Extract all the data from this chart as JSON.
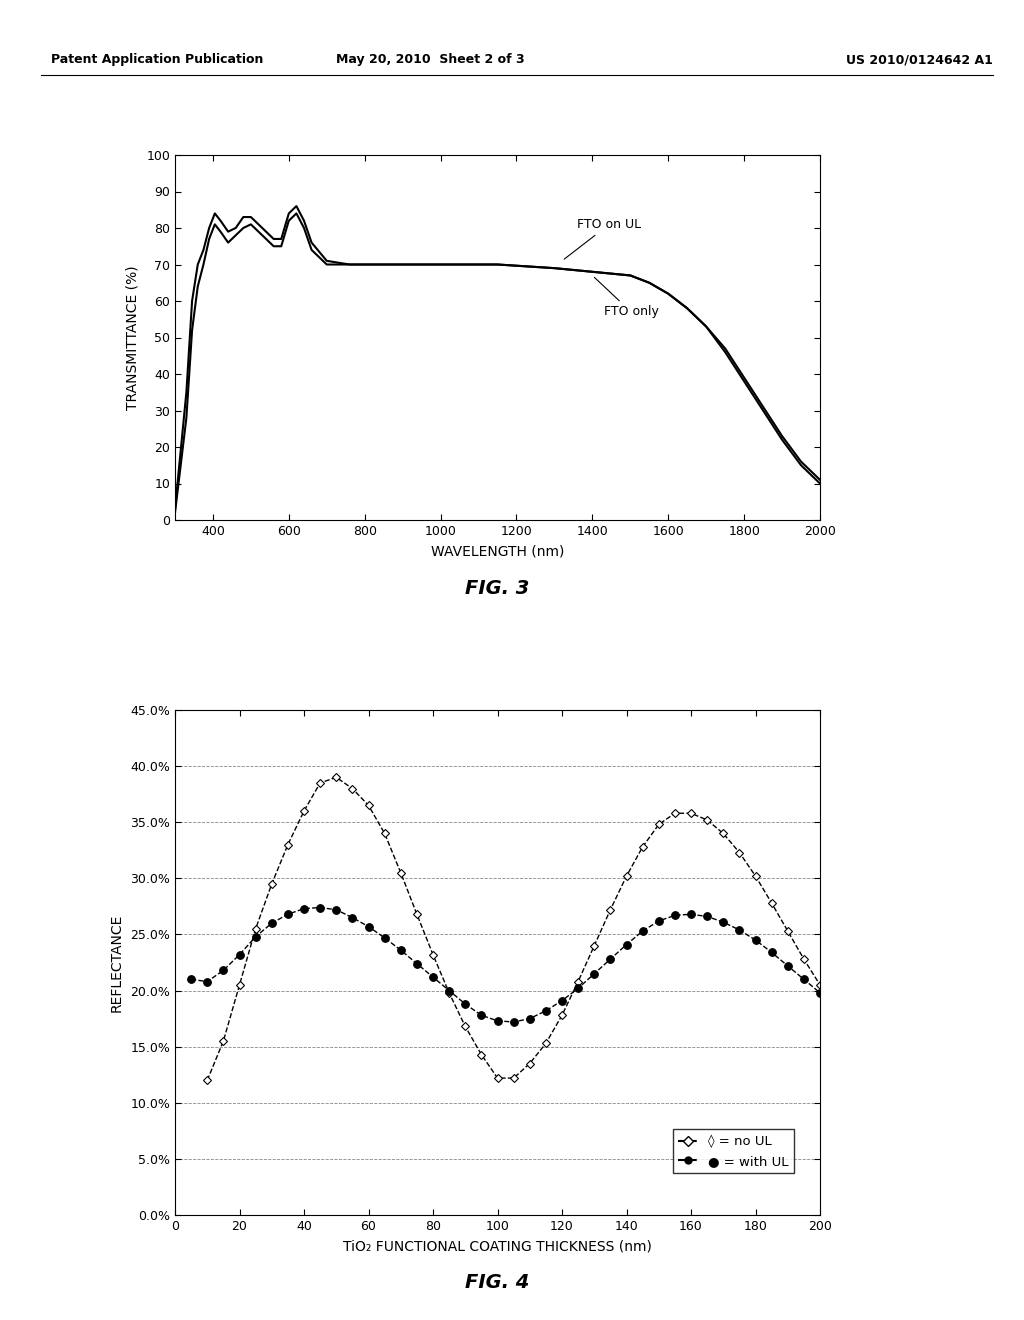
{
  "header_left": "Patent Application Publication",
  "header_mid": "May 20, 2010  Sheet 2 of 3",
  "header_right": "US 2010/0124642 A1",
  "fig3": {
    "title": "FIG. 3",
    "xlabel": "WAVELENGTH (nm)",
    "ylabel": "TRANSMITTANCE (%)",
    "xlim": [
      300,
      2000
    ],
    "ylim": [
      0,
      100
    ],
    "xticks": [
      400,
      600,
      800,
      1000,
      1200,
      1400,
      1600,
      1800,
      2000
    ],
    "yticks": [
      0,
      10,
      20,
      30,
      40,
      50,
      60,
      70,
      80,
      90,
      100
    ],
    "fto_on_ul_x": [
      300,
      330,
      345,
      360,
      375,
      390,
      405,
      420,
      440,
      460,
      480,
      500,
      520,
      540,
      560,
      580,
      600,
      620,
      640,
      660,
      700,
      760,
      850,
      1000,
      1150,
      1300,
      1400,
      1500,
      1550,
      1600,
      1650,
      1700,
      1750,
      1800,
      1850,
      1900,
      1950,
      2000
    ],
    "fto_on_ul_y": [
      3,
      35,
      60,
      70,
      74,
      80,
      84,
      82,
      79,
      80,
      83,
      83,
      81,
      79,
      77,
      77,
      84,
      86,
      82,
      76,
      71,
      70,
      70,
      70,
      70,
      69,
      68,
      67,
      65,
      62,
      58,
      53,
      46,
      38,
      30,
      22,
      15,
      10
    ],
    "fto_only_x": [
      300,
      330,
      345,
      360,
      375,
      390,
      405,
      420,
      440,
      460,
      480,
      500,
      520,
      540,
      560,
      580,
      600,
      620,
      640,
      660,
      700,
      760,
      850,
      1000,
      1150,
      1300,
      1400,
      1500,
      1550,
      1600,
      1650,
      1700,
      1750,
      1800,
      1850,
      1900,
      1950,
      2000
    ],
    "fto_only_y": [
      2,
      28,
      52,
      64,
      70,
      77,
      81,
      79,
      76,
      78,
      80,
      81,
      79,
      77,
      75,
      75,
      82,
      84,
      80,
      74,
      70,
      70,
      70,
      70,
      70,
      69,
      68,
      67,
      65,
      62,
      58,
      53,
      47,
      39,
      31,
      23,
      16,
      11
    ],
    "label_fto_ul": "FTO on UL",
    "label_fto_only": "FTO only"
  },
  "fig4": {
    "title": "FIG. 4",
    "xlabel": "TiO₂ FUNCTIONAL COATING THICKNESS (nm)",
    "ylabel": "REFLECTANCE",
    "xlim": [
      0,
      200
    ],
    "ylim": [
      0.0,
      0.45
    ],
    "xticks": [
      0,
      20,
      40,
      60,
      80,
      100,
      120,
      140,
      160,
      180,
      200
    ],
    "yticks": [
      0.0,
      0.05,
      0.1,
      0.15,
      0.2,
      0.25,
      0.3,
      0.35,
      0.4,
      0.45
    ],
    "ytick_labels": [
      "0.0%",
      "5.0%",
      "10.0%",
      "15.0%",
      "20.0%",
      "25.0%",
      "30.0%",
      "35.0%",
      "40.0%",
      "45.0%"
    ],
    "no_ul_x": [
      10,
      15,
      20,
      25,
      30,
      35,
      40,
      45,
      50,
      55,
      60,
      65,
      70,
      75,
      80,
      85,
      90,
      95,
      100,
      105,
      110,
      115,
      120,
      125,
      130,
      135,
      140,
      145,
      150,
      155,
      160,
      165,
      170,
      175,
      180,
      185,
      190,
      195,
      200
    ],
    "no_ul_y": [
      0.12,
      0.155,
      0.205,
      0.255,
      0.295,
      0.33,
      0.36,
      0.385,
      0.39,
      0.38,
      0.365,
      0.34,
      0.305,
      0.268,
      0.232,
      0.198,
      0.168,
      0.143,
      0.122,
      0.122,
      0.135,
      0.153,
      0.178,
      0.208,
      0.24,
      0.272,
      0.302,
      0.328,
      0.348,
      0.358,
      0.358,
      0.352,
      0.34,
      0.323,
      0.302,
      0.278,
      0.253,
      0.228,
      0.205
    ],
    "with_ul_x": [
      5,
      10,
      15,
      20,
      25,
      30,
      35,
      40,
      45,
      50,
      55,
      60,
      65,
      70,
      75,
      80,
      85,
      90,
      95,
      100,
      105,
      110,
      115,
      120,
      125,
      130,
      135,
      140,
      145,
      150,
      155,
      160,
      165,
      170,
      175,
      180,
      185,
      190,
      195,
      200
    ],
    "with_ul_y": [
      0.21,
      0.208,
      0.218,
      0.232,
      0.248,
      0.26,
      0.268,
      0.273,
      0.274,
      0.272,
      0.265,
      0.257,
      0.247,
      0.236,
      0.224,
      0.212,
      0.2,
      0.188,
      0.178,
      0.173,
      0.172,
      0.175,
      0.182,
      0.191,
      0.202,
      0.215,
      0.228,
      0.241,
      0.253,
      0.262,
      0.267,
      0.268,
      0.266,
      0.261,
      0.254,
      0.245,
      0.234,
      0.222,
      0.21,
      0.198
    ],
    "legend_no_ul": "◊ = no UL",
    "legend_with_ul": "● = with UL"
  },
  "bg_color": "#ffffff",
  "line_color": "#000000"
}
